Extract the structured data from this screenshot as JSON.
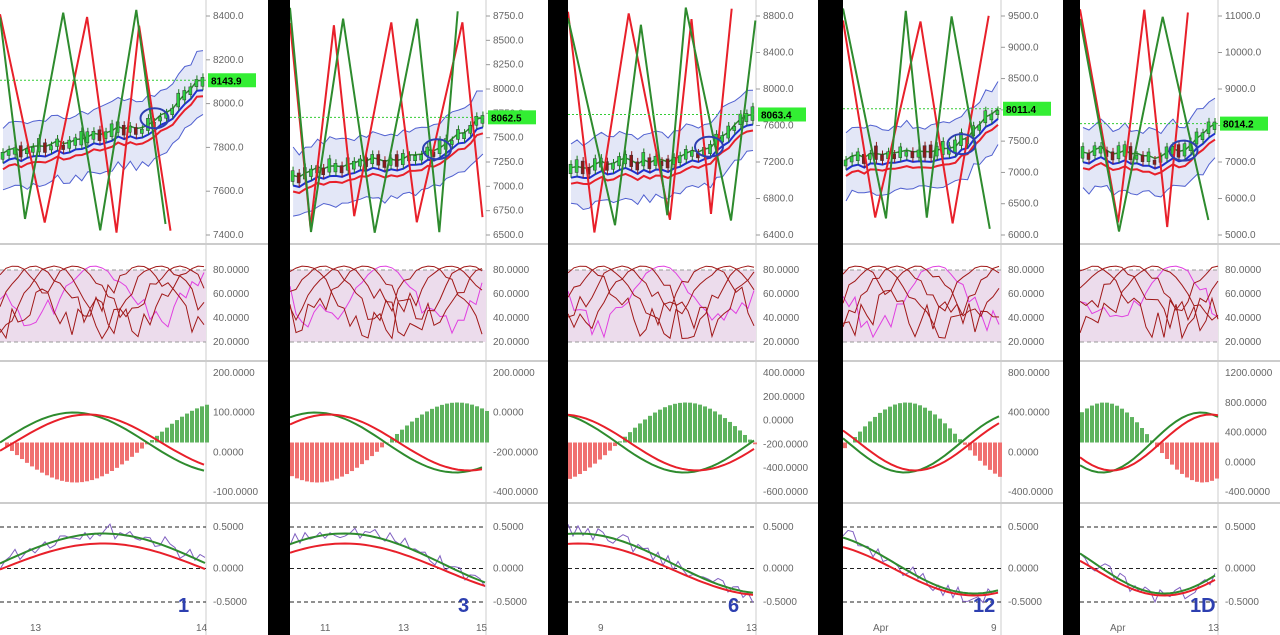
{
  "colors": {
    "bg": "#ffffff",
    "separator": "#000000",
    "candle_up": "#2ecc40",
    "candle_down": "#8b1a1a",
    "band_fill": "#c8d0f0",
    "band_line": "#5060d0",
    "red_line": "#e8202a",
    "green_line": "#2e8b2e",
    "dark_red": "#a01818",
    "blue_line": "#2030d0",
    "stoch_zone": "#ecdcec",
    "hist_up": "#5fb35f",
    "hist_down": "#f07070",
    "tag_bg": "#33ee33",
    "annot_blue": "#2d3fb0",
    "annot_cyan": "#1aa8e0",
    "grid": "#d8d8d8",
    "axis_text": "#666666"
  },
  "panels": [
    {
      "id": "p1",
      "x": 0,
      "w": 268,
      "timeframe": "1",
      "price": {
        "ticks": [
          "8400.0",
          "8200.0",
          "8000.0",
          "7800.0",
          "7600.0",
          "7400.0"
        ],
        "tag": "8143.9"
      },
      "stoch": {
        "ticks": [
          "80.0000",
          "60.0000",
          "40.0000",
          "20.0000"
        ]
      },
      "macd": {
        "ticks": [
          "200.0000",
          "100.0000",
          "0.0000",
          "-100.0000"
        ]
      },
      "osc": {
        "ticks": [
          "0.5000",
          "0.0000",
          "-0.5000"
        ]
      },
      "dates": [
        "13",
        "14"
      ]
    },
    {
      "id": "p2",
      "x": 290,
      "w": 258,
      "timeframe": "3",
      "price": {
        "ticks": [
          "8750.0",
          "8500.0",
          "8250.0",
          "8000.0",
          "7750.0",
          "7500.0",
          "7250.0",
          "7000.0",
          "6750.0",
          "6500.0"
        ],
        "tag": "8062.5"
      },
      "stoch": {
        "ticks": [
          "80.0000",
          "60.0000",
          "40.0000",
          "20.0000"
        ]
      },
      "macd": {
        "ticks": [
          "200.0000",
          "0.0000",
          "-200.0000",
          "-400.0000"
        ]
      },
      "osc": {
        "ticks": [
          "0.5000",
          "0.0000",
          "-0.5000"
        ]
      },
      "dates": [
        "11",
        "13",
        "15"
      ]
    },
    {
      "id": "p3",
      "x": 568,
      "w": 250,
      "timeframe": "6",
      "price": {
        "ticks": [
          "8800.0",
          "8400.0",
          "8000.0",
          "7600.0",
          "7200.0",
          "6800.0",
          "6400.0"
        ],
        "tag": "8063.4"
      },
      "stoch": {
        "ticks": [
          "80.0000",
          "60.0000",
          "40.0000",
          "20.0000"
        ]
      },
      "macd": {
        "ticks": [
          "400.0000",
          "200.0000",
          "0.0000",
          "-200.0000",
          "-400.0000",
          "-600.0000"
        ]
      },
      "osc": {
        "ticks": [
          "0.5000",
          "0.0000",
          "-0.5000"
        ]
      },
      "dates": [
        "9",
        "13"
      ]
    },
    {
      "id": "p4",
      "x": 843,
      "w": 220,
      "timeframe": "12",
      "price": {
        "ticks": [
          "9500.0",
          "9000.0",
          "8500.0",
          "8000.0",
          "7500.0",
          "7000.0",
          "6500.0",
          "6000.0"
        ],
        "tag": "8011.4"
      },
      "stoch": {
        "ticks": [
          "80.0000",
          "60.0000",
          "40.0000",
          "20.0000"
        ]
      },
      "macd": {
        "ticks": [
          "800.0000",
          "400.0000",
          "0.0000",
          "-400.0000"
        ]
      },
      "osc": {
        "ticks": [
          "0.5000",
          "0.0000",
          "-0.5000"
        ]
      },
      "dates": [
        "Apr",
        "9"
      ]
    },
    {
      "id": "p5",
      "x": 1080,
      "w": 200,
      "timeframe": "1D",
      "price": {
        "ticks": [
          "11000.0",
          "10000.0",
          "9000.0",
          "8000.0",
          "7000.0",
          "6000.0",
          "5000.0"
        ],
        "tag": "8014.2"
      },
      "stoch": {
        "ticks": [
          "80.0000",
          "60.0000",
          "40.0000",
          "20.0000"
        ]
      },
      "macd": {
        "ticks": [
          "1200.0000",
          "800.0000",
          "400.0000",
          "0.0000",
          "-400.0000"
        ]
      },
      "osc": {
        "ticks": [
          "0.5000",
          "0.0000",
          "-0.5000"
        ]
      },
      "dates": [
        "Apr",
        "13"
      ]
    }
  ],
  "chart_data": {
    "type": "line",
    "series_summary": [
      {
        "timeframe": "1",
        "last_price": 8143.9
      },
      {
        "timeframe": "3",
        "last_price": 8062.5
      },
      {
        "timeframe": "6",
        "last_price": 8063.4
      },
      {
        "timeframe": "12",
        "last_price": 8011.4
      },
      {
        "timeframe": "1D",
        "last_price": 8014.2
      }
    ],
    "subpanels": [
      "price",
      "stochastic",
      "macd",
      "oscillator"
    ],
    "stochastic_levels": [
      80,
      20
    ],
    "oscillator_levels": [
      0.5,
      0.0,
      -0.5
    ]
  }
}
